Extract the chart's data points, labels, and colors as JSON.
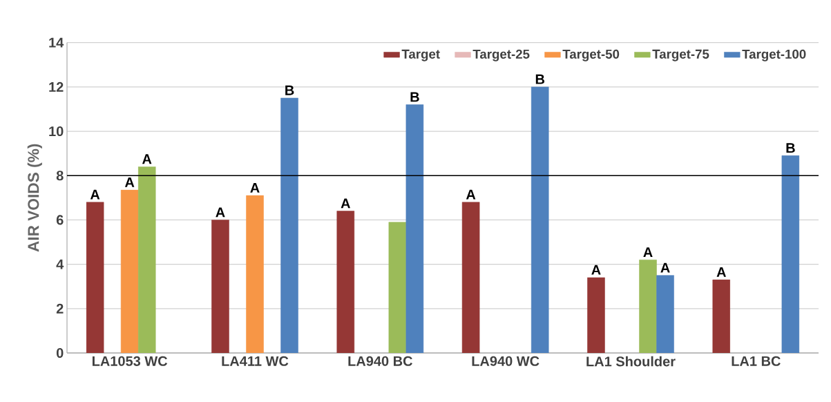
{
  "chart_data": {
    "type": "bar",
    "ylabel": "AIR VOIDS (%)",
    "categories": [
      "LA1053 WC",
      "LA411 WC",
      "LA940 BC",
      "LA940 WC",
      "LA1 Shoulder",
      "LA1 BC"
    ],
    "series": [
      {
        "name": "Target",
        "color": "#953735",
        "values": [
          6.8,
          6.0,
          6.4,
          6.8,
          3.4,
          3.3
        ],
        "value_labels": [
          "A",
          "A",
          "A",
          "A",
          "A",
          "A"
        ]
      },
      {
        "name": "Target-25",
        "color": "#e6b9b8",
        "values": [
          null,
          null,
          null,
          null,
          null,
          null
        ]
      },
      {
        "name": "Target-50",
        "color": "#f79646",
        "values": [
          7.35,
          7.1,
          null,
          null,
          null,
          null
        ],
        "value_labels": [
          "A",
          "A",
          null,
          null,
          null,
          null
        ]
      },
      {
        "name": "Target-75",
        "color": "#9bbb59",
        "values": [
          8.4,
          null,
          5.9,
          null,
          4.2,
          null
        ],
        "value_labels": [
          "A",
          null,
          null,
          null,
          "A",
          null
        ]
      },
      {
        "name": "Target-100",
        "color": "#4f81bd",
        "values": [
          null,
          11.5,
          11.2,
          12.0,
          3.5,
          8.9
        ],
        "value_labels": [
          null,
          "B",
          "B",
          "B",
          "A",
          "B"
        ]
      }
    ],
    "ylim": [
      0,
      14
    ],
    "yticks": [
      0,
      2,
      4,
      6,
      8,
      10,
      12,
      14
    ],
    "grid": "y",
    "legend": "top right",
    "ref_lines": [
      {
        "axis": "y",
        "value": 8,
        "color": "#000000"
      }
    ]
  }
}
